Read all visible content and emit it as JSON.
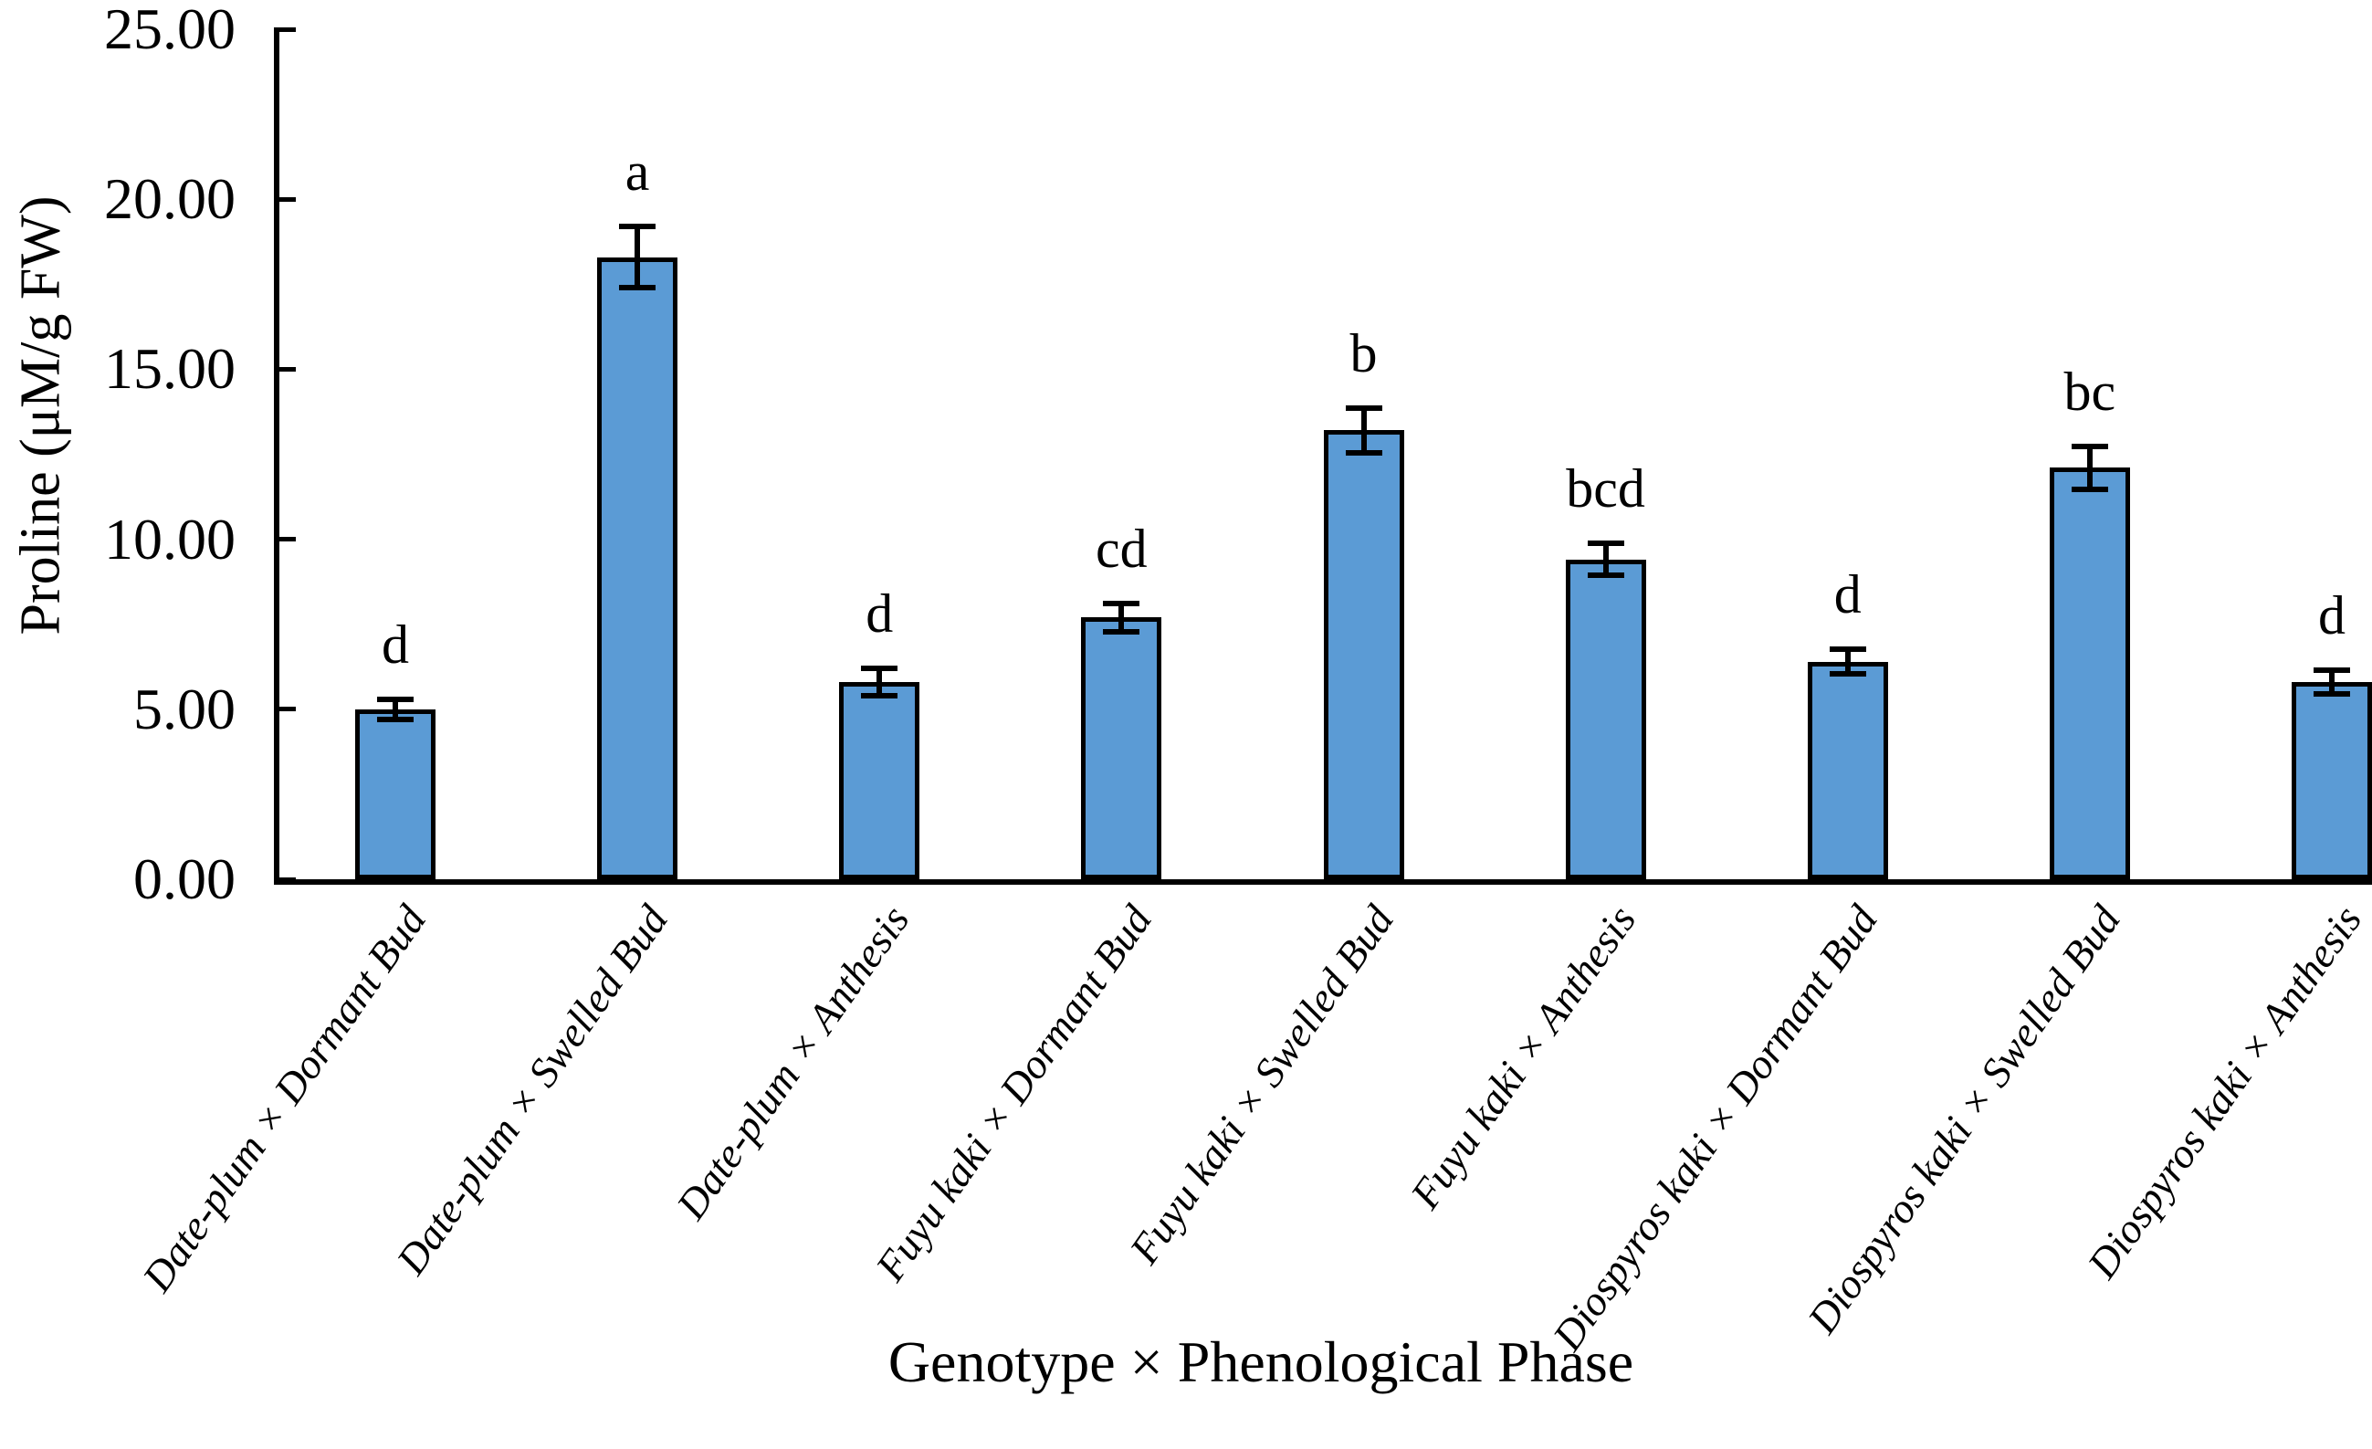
{
  "figure": {
    "background_color": "#ffffff",
    "axis_color": "#000000"
  },
  "chart_data": {
    "type": "bar",
    "title": "",
    "xlabel": "Genotype × Phenological Phase",
    "ylabel": "Proline (μM/g FW)",
    "categories": [
      "Date-plum × Dormant Bud",
      "Date-plum × Swelled Bud",
      "Date-plum × Anthesis",
      "Fuyu kaki × Dormant Bud",
      "Fuyu kaki × Swelled Bud",
      "Fuyu kaki × Anthesis",
      "Diospyros kaki × Dormant Bud",
      "Diospyros kaki × Swelled Bud",
      "Diospyros kaki × Anthesis"
    ],
    "values": [
      5.0,
      18.3,
      5.8,
      7.7,
      13.2,
      9.4,
      6.4,
      12.1,
      5.8
    ],
    "error_bars": [
      0.3,
      0.9,
      0.4,
      0.42,
      0.65,
      0.47,
      0.37,
      0.63,
      0.35
    ],
    "significance_letters": [
      "d",
      "a",
      "d",
      "cd",
      "b",
      "bcd",
      "d",
      "bc",
      "d"
    ],
    "ylim": [
      0,
      25
    ],
    "ytick_values": [
      0,
      5,
      10,
      15,
      20,
      25
    ],
    "ytick_labels": [
      "0.00",
      "5.00",
      "10.00",
      "15.00",
      "20.00",
      "25.00"
    ],
    "grid": false,
    "legend": "none",
    "bar_fill_color": "#5B9BD5",
    "bar_border_color": "#000000",
    "error_bar_color": "#000000"
  }
}
